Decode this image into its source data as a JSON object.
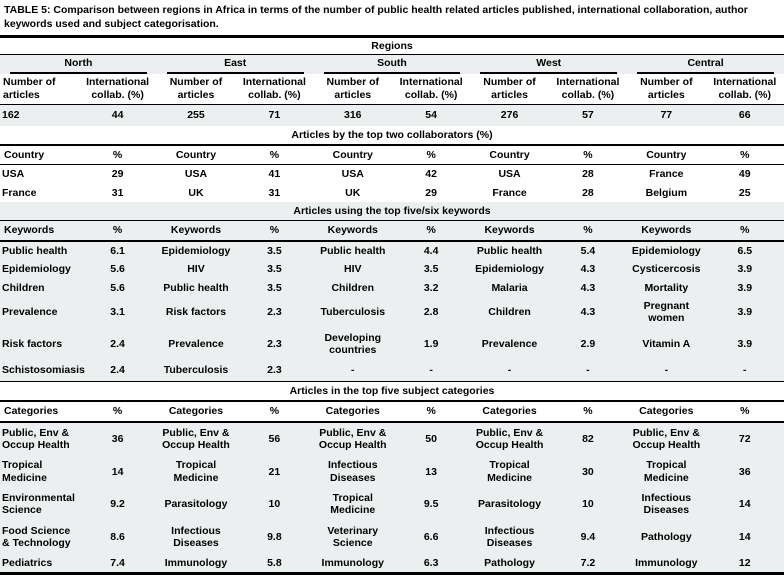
{
  "caption": {
    "label": "TABLE 5:",
    "text": "Comparison between regions in Africa in terms of the number of public health related articles published, international collaboration, author keywords used and subject categorisation."
  },
  "colors": {
    "band_gray": "#ecefef",
    "rule_black": "#000000"
  },
  "table": {
    "group_header": "Regions",
    "regions": [
      "North",
      "East",
      "South",
      "West",
      "Central"
    ],
    "stat_headers": {
      "articles": "Number of articles",
      "collab": "International collab. (%)"
    },
    "totals": [
      {
        "articles": "162",
        "collab": "44"
      },
      {
        "articles": "255",
        "collab": "71"
      },
      {
        "articles": "316",
        "collab": "54"
      },
      {
        "articles": "276",
        "collab": "57"
      },
      {
        "articles": "77",
        "collab": "66"
      }
    ],
    "sections": [
      {
        "id": "collaborators",
        "title": "Articles by the top two collaborators (%)",
        "label_header": "Country",
        "value_header": "%",
        "rows": [
          [
            [
              "USA",
              "29"
            ],
            [
              "USA",
              "41"
            ],
            [
              "USA",
              "42"
            ],
            [
              "USA",
              "28"
            ],
            [
              "France",
              "49"
            ]
          ],
          [
            [
              "France",
              "31"
            ],
            [
              "UK",
              "31"
            ],
            [
              "UK",
              "29"
            ],
            [
              "France",
              "28"
            ],
            [
              "Belgium",
              "25"
            ]
          ]
        ]
      },
      {
        "id": "keywords",
        "title": "Articles using the top five/six keywords",
        "label_header": "Keywords",
        "value_header": "%",
        "rows": [
          [
            [
              "Public health",
              "6.1"
            ],
            [
              "Epidemiology",
              "3.5"
            ],
            [
              "Public health",
              "4.4"
            ],
            [
              "Public health",
              "5.4"
            ],
            [
              "Epidemiology",
              "6.5"
            ]
          ],
          [
            [
              "Epidemiology",
              "5.6"
            ],
            [
              "HIV",
              "3.5"
            ],
            [
              "HIV",
              "3.5"
            ],
            [
              "Epidemiology",
              "4.3"
            ],
            [
              "Cysticercosis",
              "3.9"
            ]
          ],
          [
            [
              "Children",
              "5.6"
            ],
            [
              "Public health",
              "3.5"
            ],
            [
              "Children",
              "3.2"
            ],
            [
              "Malaria",
              "4.3"
            ],
            [
              "Mortality",
              "3.9"
            ]
          ],
          [
            [
              "Prevalence",
              "3.1"
            ],
            [
              "Risk factors",
              "2.3"
            ],
            [
              "Tuberculosis",
              "2.8"
            ],
            [
              "Children",
              "4.3"
            ],
            [
              "Pregnant women",
              "3.9"
            ]
          ],
          [
            [
              "Risk factors",
              "2.4"
            ],
            [
              "Prevalence",
              "2.3"
            ],
            [
              "Developing countries",
              "1.9"
            ],
            [
              "Prevalence",
              "2.9"
            ],
            [
              "Vitamin A",
              "3.9"
            ]
          ],
          [
            [
              "Schistosomiasis",
              "2.4"
            ],
            [
              "Tuberculosis",
              "2.3"
            ],
            [
              "-",
              "-"
            ],
            [
              "-",
              "-"
            ],
            [
              "-",
              "-"
            ]
          ]
        ]
      },
      {
        "id": "categories",
        "title": "Articles in the top five subject categories",
        "label_header": "Categories",
        "value_header": "%",
        "rows": [
          [
            [
              "Public, Env & Occup Health",
              "36"
            ],
            [
              "Public, Env & Occup Health",
              "56"
            ],
            [
              "Public, Env & Occup Health",
              "50"
            ],
            [
              "Public, Env & Occup Health",
              "82"
            ],
            [
              "Public, Env & Occup Health",
              "72"
            ]
          ],
          [
            [
              "Tropical Medicine",
              "14"
            ],
            [
              "Tropical Medicine",
              "21"
            ],
            [
              "Infectious Diseases",
              "13"
            ],
            [
              "Tropical Medicine",
              "30"
            ],
            [
              "Tropical Medicine",
              "36"
            ]
          ],
          [
            [
              "Environmental Science",
              "9.2"
            ],
            [
              "Parasitology",
              "10"
            ],
            [
              "Tropical Medicine",
              "9.5"
            ],
            [
              "Parasitology",
              "10"
            ],
            [
              "Infectious Diseases",
              "14"
            ]
          ],
          [
            [
              "Food Science & Technology",
              "8.6"
            ],
            [
              "Infectious Diseases",
              "9.8"
            ],
            [
              "Veterinary Science",
              "6.6"
            ],
            [
              "Infectious Diseases",
              "9.4"
            ],
            [
              "Pathology",
              "14"
            ]
          ],
          [
            [
              "Pediatrics",
              "7.4"
            ],
            [
              "Immunology",
              "5.8"
            ],
            [
              "Immunology",
              "6.3"
            ],
            [
              "Pathology",
              "7.2"
            ],
            [
              "Immunology",
              "12"
            ]
          ]
        ]
      }
    ]
  }
}
